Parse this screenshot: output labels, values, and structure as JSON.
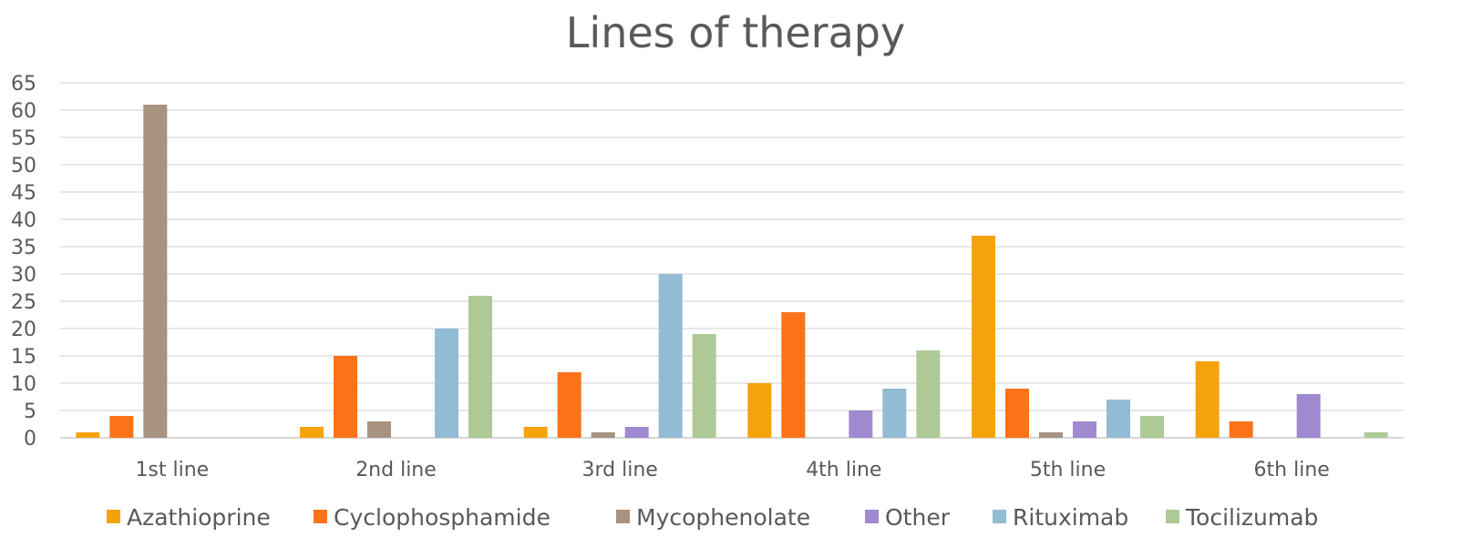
{
  "chart_data": {
    "type": "bar",
    "title": "Lines of therapy",
    "xlabel": "",
    "ylabel": "",
    "categories": [
      "1st line",
      "2nd line",
      "3rd line",
      "4th line",
      "5th line",
      "6th line"
    ],
    "ylim": [
      0,
      65
    ],
    "yticks": [
      0,
      5,
      10,
      15,
      20,
      25,
      30,
      35,
      40,
      45,
      50,
      55,
      60,
      65
    ],
    "grid": true,
    "legend_position": "bottom",
    "series": [
      {
        "name": "Azathioprine",
        "color": "#f5a30a",
        "values": [
          1,
          2,
          2,
          10,
          37,
          14
        ]
      },
      {
        "name": "Cyclophosphamide",
        "color": "#fa7319",
        "values": [
          4,
          15,
          12,
          23,
          9,
          3
        ]
      },
      {
        "name": "Mycophenolate",
        "color": "#a89280",
        "values": [
          61,
          3,
          1,
          0,
          1,
          0
        ]
      },
      {
        "name": "Other",
        "color": "#9f8ad0",
        "values": [
          0,
          0,
          2,
          5,
          3,
          8
        ]
      },
      {
        "name": "Rituximab",
        "color": "#92bcd3",
        "values": [
          0,
          20,
          30,
          9,
          7,
          0
        ]
      },
      {
        "name": "Tocilizumab",
        "color": "#aec996",
        "values": [
          0,
          26,
          19,
          16,
          4,
          1
        ]
      }
    ]
  }
}
